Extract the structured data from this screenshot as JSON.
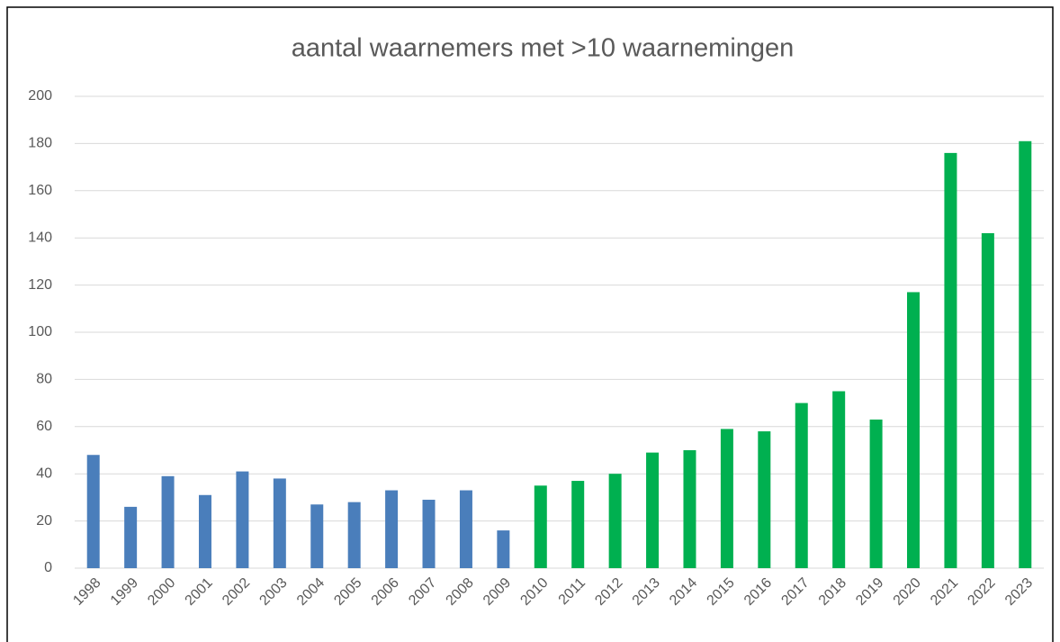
{
  "chart_data": {
    "type": "bar",
    "title": "aantal waarnemers met >10 waarnemingen",
    "categories": [
      "1998",
      "1999",
      "2000",
      "2001",
      "2002",
      "2003",
      "2004",
      "2005",
      "2006",
      "2007",
      "2008",
      "2009",
      "2010",
      "2011",
      "2012",
      "2013",
      "2014",
      "2015",
      "2016",
      "2017",
      "2018",
      "2019",
      "2020",
      "2021",
      "2022",
      "2023"
    ],
    "values": [
      48,
      26,
      39,
      31,
      41,
      38,
      27,
      28,
      33,
      29,
      33,
      16,
      35,
      37,
      40,
      49,
      50,
      59,
      58,
      70,
      75,
      63,
      117,
      176,
      142,
      181
    ],
    "colors": [
      "#4a7ebb",
      "#4a7ebb",
      "#4a7ebb",
      "#4a7ebb",
      "#4a7ebb",
      "#4a7ebb",
      "#4a7ebb",
      "#4a7ebb",
      "#4a7ebb",
      "#4a7ebb",
      "#4a7ebb",
      "#4a7ebb",
      "#00b050",
      "#00b050",
      "#00b050",
      "#00b050",
      "#00b050",
      "#00b050",
      "#00b050",
      "#00b050",
      "#00b050",
      "#00b050",
      "#00b050",
      "#00b050",
      "#00b050",
      "#00b050"
    ],
    "ylim": [
      0,
      200
    ],
    "yticks": [
      0,
      20,
      40,
      60,
      80,
      100,
      120,
      140,
      160,
      180,
      200
    ],
    "grid": true
  }
}
